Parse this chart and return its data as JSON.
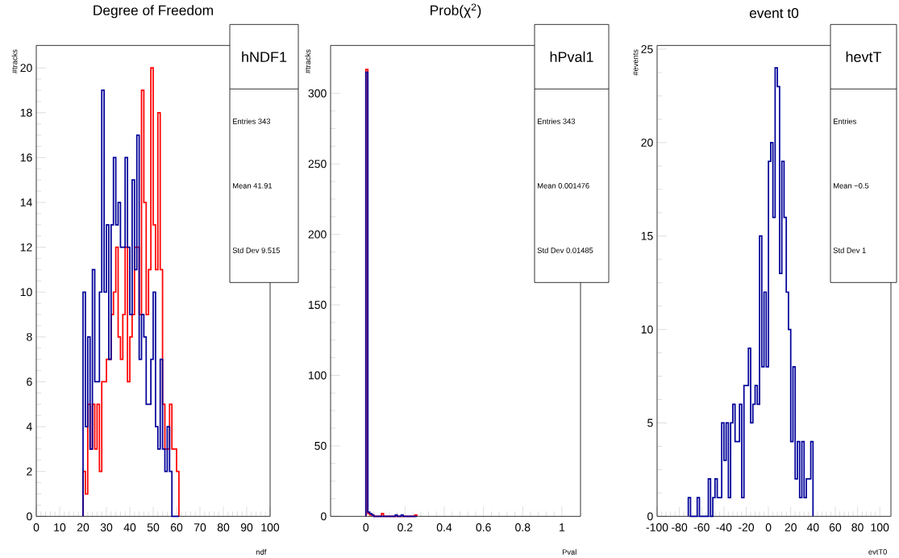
{
  "chart_data": [
    {
      "type": "histogram",
      "title": "Degree of Freedom",
      "xlabel": "ndf",
      "ylabel": "#tracks",
      "bins": [
        20,
        21,
        22,
        23,
        24,
        25,
        26,
        27,
        28,
        29,
        30,
        31,
        32,
        33,
        34,
        35,
        36,
        37,
        38,
        39,
        40,
        41,
        42,
        43,
        44,
        45,
        46,
        47,
        48,
        49,
        50,
        51,
        52,
        53,
        54,
        55,
        56,
        57,
        58,
        59,
        60,
        61
      ],
      "series": [
        {
          "color": "#ff0000",
          "values": [
            2,
            1,
            5,
            3,
            5,
            3,
            5,
            2,
            6,
            6,
            7,
            7,
            9,
            10,
            12,
            8,
            7,
            9,
            12,
            6,
            8,
            9,
            12,
            12,
            9,
            19,
            14,
            9,
            11,
            20,
            13,
            11,
            18,
            11,
            5,
            3,
            3,
            5,
            3,
            3,
            2
          ]
        },
        {
          "color": "#000099",
          "values": [
            10,
            4,
            8,
            3,
            11,
            6,
            6,
            10,
            19,
            10,
            13,
            7,
            13,
            16,
            13,
            14,
            12,
            12,
            16,
            12,
            9,
            15,
            11,
            17,
            7,
            9,
            8,
            5,
            5,
            7,
            10,
            4,
            3,
            7,
            3,
            2,
            4,
            2,
            0,
            0,
            0
          ]
        }
      ],
      "xlim": [
        0,
        100
      ],
      "ylim": [
        0,
        21
      ],
      "xticks": [
        0,
        10,
        20,
        30,
        40,
        50,
        60,
        70,
        80,
        90,
        100
      ],
      "yticks": [
        0,
        2,
        4,
        6,
        8,
        10,
        12,
        14,
        16,
        18,
        20
      ],
      "annotations": [
        "hNDF1",
        "Entries 343",
        "Mean 41.91",
        "Std Dev 9.515"
      ]
    },
    {
      "type": "histogram",
      "title": "Prob(χ$^{2}$)",
      "xlabel": "Pval",
      "ylabel": "#tracks",
      "bins": [
        0,
        0.01,
        0.02,
        0.03,
        0.04,
        0.05,
        0.06,
        0.07,
        0.08,
        0.09,
        0.1,
        0.11,
        0.12,
        0.13,
        0.14,
        0.15,
        0.16,
        0.17,
        0.18,
        0.19,
        0.2,
        0.21,
        0.22,
        0.23,
        0.24,
        0.25,
        0.26
      ],
      "series": [
        {
          "color": "#ff0000",
          "values": [
            317,
            2,
            1,
            1,
            0,
            0,
            0,
            0,
            2,
            0,
            0,
            0,
            0,
            0,
            0,
            0,
            0,
            0,
            0,
            0,
            0,
            0,
            0,
            0,
            0,
            1
          ]
        },
        {
          "color": "#000099",
          "values": [
            315,
            3,
            2,
            1,
            0,
            0,
            0,
            0,
            0,
            0,
            0,
            0,
            0,
            0,
            0,
            1,
            0,
            0,
            1,
            0,
            0,
            0,
            0,
            0,
            0,
            0
          ]
        }
      ],
      "xlim": [
        -0.18,
        1.095
      ],
      "ylim": [
        0,
        334
      ],
      "xticks": [
        0,
        0.2,
        0.4,
        0.6,
        0.8,
        1
      ],
      "yticks": [
        0,
        50,
        100,
        150,
        200,
        250,
        300
      ],
      "annotations": [
        "hPval1",
        "Entries 343",
        "Mean 0.001476",
        "Std Dev 0.01485"
      ]
    },
    {
      "type": "histogram",
      "title": "event t0",
      "xlabel": "evtT0",
      "ylabel": "#events",
      "bins": [
        -72,
        -70,
        -68,
        -66,
        -64,
        -62,
        -60,
        -58,
        -56,
        -54,
        -52,
        -50,
        -48,
        -46,
        -44,
        -42,
        -40,
        -38,
        -36,
        -34,
        -32,
        -30,
        -28,
        -26,
        -24,
        -22,
        -20,
        -18,
        -16,
        -14,
        -12,
        -10,
        -8,
        -6,
        -4,
        -2,
        0,
        2,
        4,
        6,
        8,
        10,
        12,
        14,
        16,
        18,
        20,
        22,
        24,
        26,
        28,
        30,
        32,
        34,
        36,
        38,
        40
      ],
      "series": [
        {
          "color": "#000099",
          "values": [
            1,
            0,
            0,
            0,
            1,
            0,
            0,
            0,
            0,
            2,
            0,
            1,
            2,
            1,
            1,
            5,
            3,
            5,
            1,
            5,
            6,
            4,
            4,
            6,
            1,
            7,
            7,
            9,
            5,
            6,
            7,
            6,
            15,
            8,
            12,
            8,
            19,
            20,
            16,
            24,
            23,
            13,
            19,
            16,
            12,
            10,
            4,
            8,
            2,
            4,
            1,
            4,
            1,
            2,
            2,
            4
          ]
        }
      ],
      "xlim": [
        -100,
        110
      ],
      "ylim": [
        0,
        25.2
      ],
      "xticks": [
        -100,
        -80,
        -60,
        -40,
        -20,
        0,
        20,
        40,
        60,
        80,
        100
      ],
      "yticks": [
        0,
        5,
        10,
        15,
        20,
        25
      ],
      "annotations": [
        "hevtT",
        "Entries",
        "Mean −0.5",
        "Std Dev 1"
      ]
    }
  ]
}
